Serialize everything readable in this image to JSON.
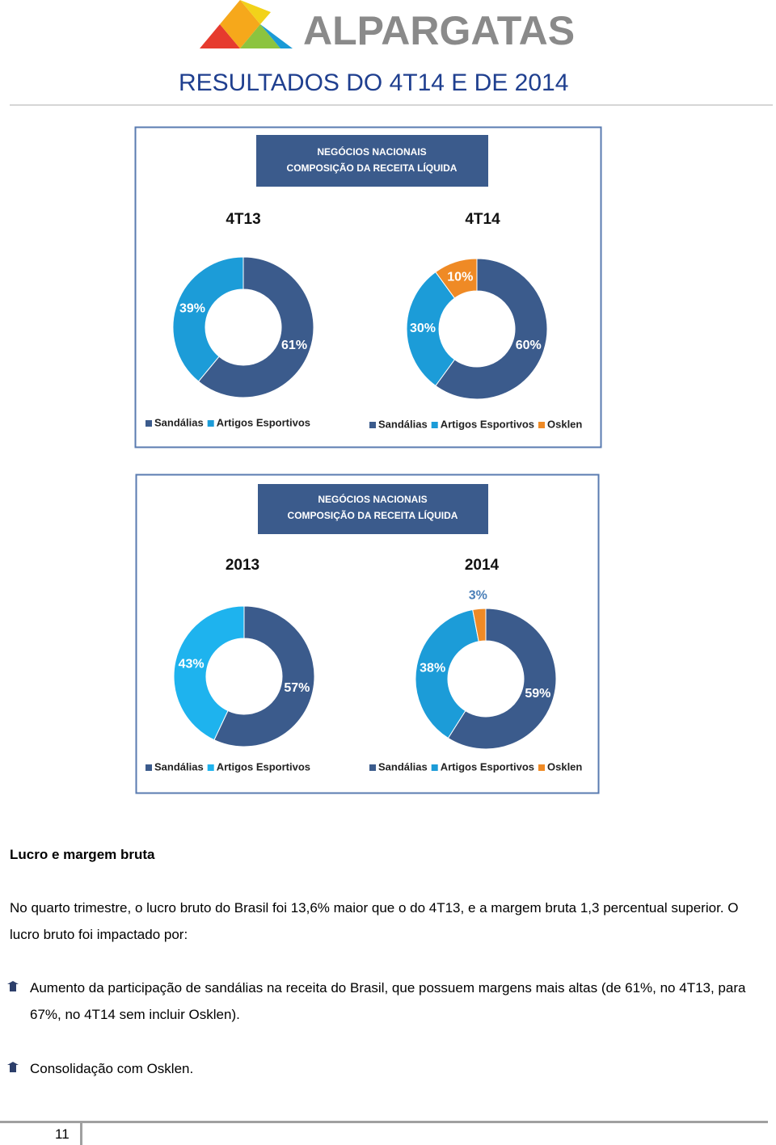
{
  "header": {
    "logo": "ALPARGATAS",
    "title": "RESULTADOS DO 4T14 E DE 2014"
  },
  "panels": [
    {
      "heading": [
        "NEGÓCIOS NACIONAIS",
        "COMPOSIÇÃO DA RECEITA LÍQUIDA"
      ]
    },
    {
      "heading": [
        "NEGÓCIOS NACIONAIS",
        "COMPOSIÇÃO DA RECEITA LÍQUIDA"
      ]
    }
  ],
  "chart_data": [
    {
      "type": "pie",
      "title": "4T13",
      "categories": [
        "Sandálias",
        "Artigos Esportivos"
      ],
      "values": [
        61,
        39
      ],
      "value_labels": [
        "61%",
        "39%"
      ],
      "colors": [
        "#3b5b8c",
        "#1c9cd8"
      ]
    },
    {
      "type": "pie",
      "title": "4T14",
      "categories": [
        "Sandálias",
        "Artigos Esportivos",
        "Osklen"
      ],
      "values": [
        60,
        30,
        10
      ],
      "value_labels": [
        "60%",
        "30%",
        "10%"
      ],
      "colors": [
        "#3b5b8c",
        "#1c9cd8",
        "#ef8a25"
      ]
    },
    {
      "type": "pie",
      "title": "2013",
      "categories": [
        "Sandálias",
        "Artigos Esportivos"
      ],
      "values": [
        57,
        43
      ],
      "value_labels": [
        "57%",
        "43%"
      ],
      "colors": [
        "#3b5b8c",
        "#1eb3ee"
      ]
    },
    {
      "type": "pie",
      "title": "2014",
      "categories": [
        "Sandálias",
        "Artigos Esportivos",
        "Osklen"
      ],
      "values": [
        59,
        38,
        3
      ],
      "value_labels": [
        "59%",
        "38%",
        "3%"
      ],
      "colors": [
        "#3b5b8c",
        "#1c9cd8",
        "#ef8a25"
      ]
    }
  ],
  "section": {
    "heading": "Lucro e margem bruta",
    "paragraph": "No quarto trimestre, o lucro bruto do Brasil foi 13,6% maior que o do 4T13, e a margem bruta 1,3 percentual superior. O lucro bruto foi impactado por:",
    "bullets": [
      "Aumento da participação de sandálias na receita do Brasil, que possuem margens mais altas (de 61%, no 4T13, para 67%, no 4T14 sem incluir Osklen).",
      "Consolidação com Osklen."
    ]
  },
  "footer": {
    "page": "11"
  }
}
